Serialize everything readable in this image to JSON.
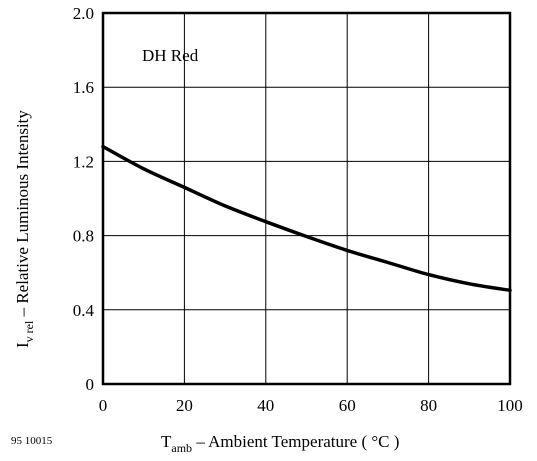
{
  "chart_data": {
    "type": "line",
    "title": "",
    "xlabel": {
      "symbol": "T",
      "subscript": "amb",
      "text": " – Ambient Temperature ( °C )"
    },
    "ylabel": {
      "symbol": "I",
      "subscript": "v rel",
      "text": "  – Relative Luminous Intensity"
    },
    "xlim": [
      0,
      100
    ],
    "ylim": [
      0,
      2.0
    ],
    "x_ticks": [
      0,
      20,
      40,
      60,
      80,
      100
    ],
    "y_ticks": [
      0,
      0.4,
      0.8,
      1.2,
      1.6,
      2.0
    ],
    "y_tick_labels": [
      "0",
      "0.4",
      "0.8",
      "1.2",
      "1.6",
      "2.0"
    ],
    "grid": true,
    "annotation": "DH Red",
    "series": [
      {
        "x": [
          0,
          10,
          20,
          30,
          40,
          50,
          60,
          70,
          80,
          90,
          100
        ],
        "y": [
          1.28,
          1.16,
          1.06,
          0.96,
          0.875,
          0.795,
          0.72,
          0.655,
          0.59,
          0.54,
          0.505
        ]
      }
    ]
  },
  "figure_id": "95 10015",
  "colors": {
    "line": "#000000",
    "grid": "#000000",
    "background": "#ffffff"
  }
}
